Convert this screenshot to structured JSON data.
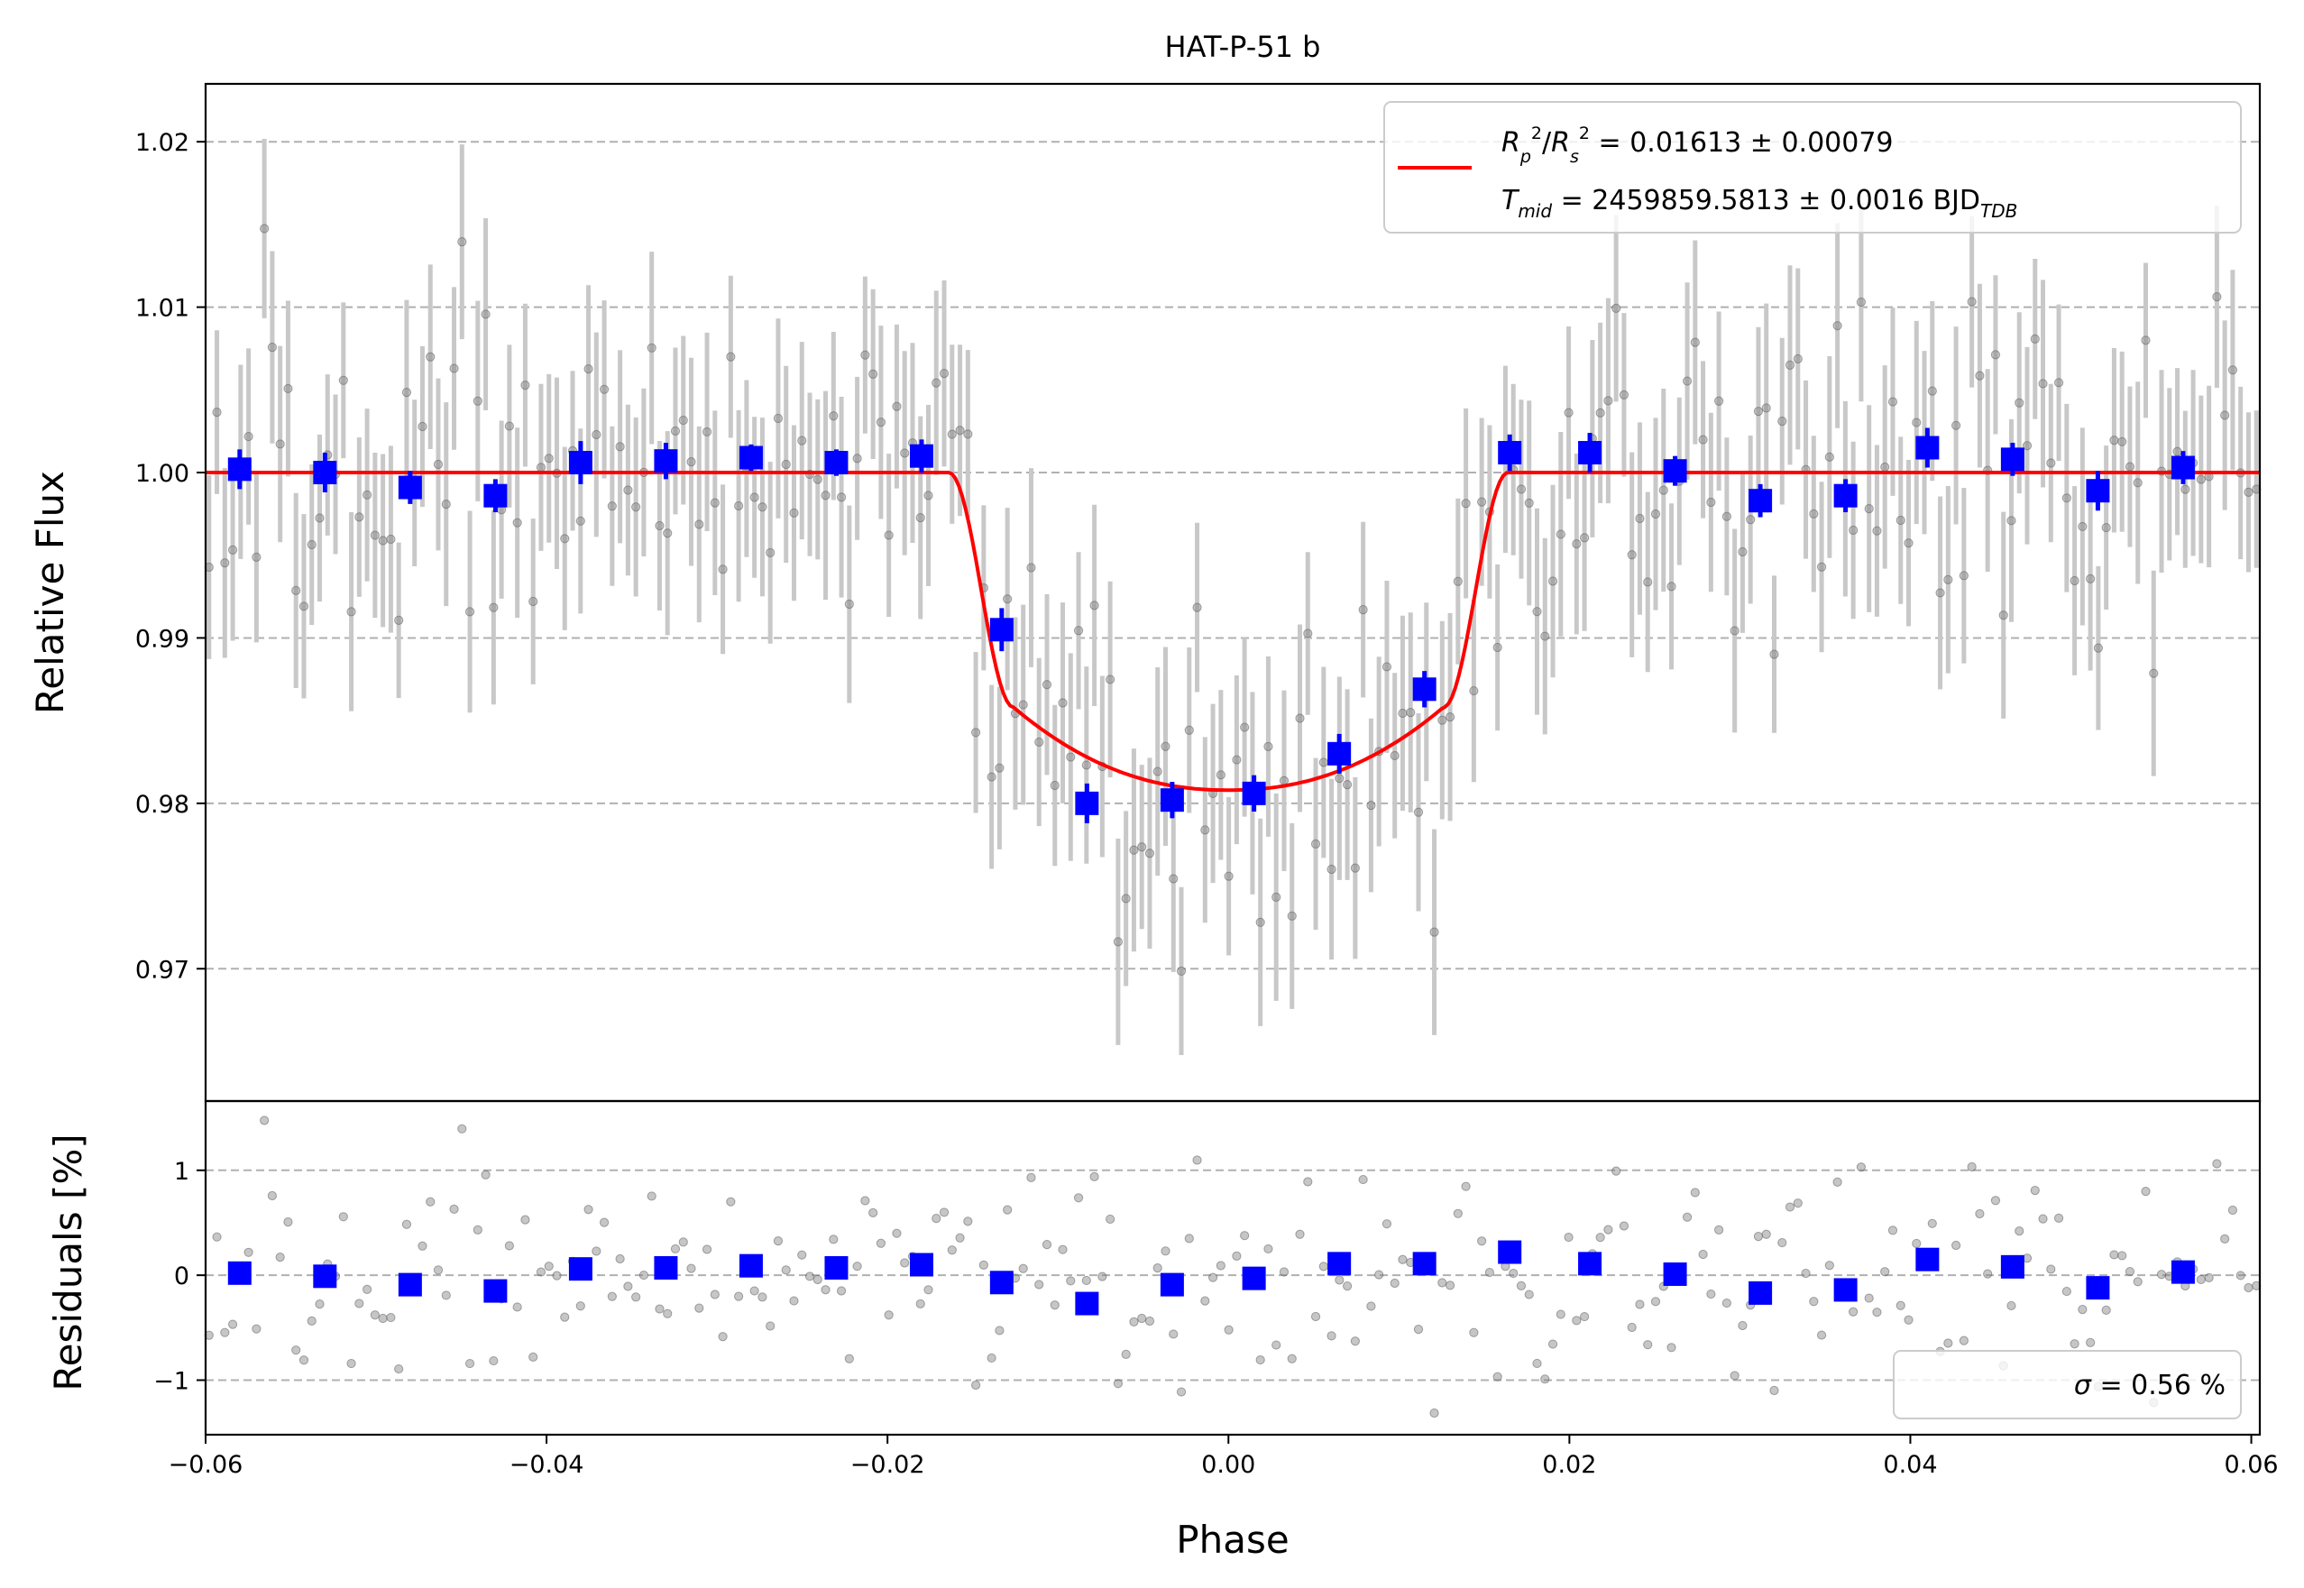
{
  "chart_data": {
    "type": "scatter",
    "title": "HAT-P-51 b",
    "xlabel": "Phase",
    "ylabel_top": "Relative Flux",
    "ylabel_bottom": "Residuals [%]",
    "xlim": [
      -0.06,
      0.0605
    ],
    "ylim_top": [
      0.962,
      1.0235
    ],
    "ylim_bottom": [
      -1.52,
      1.66
    ],
    "grid": "horizontal dashed",
    "x_ticks": [
      "−0.06",
      "−0.04",
      "−0.02",
      "0.00",
      "0.02",
      "0.04",
      "0.06"
    ],
    "x_tick_values": [
      -0.06,
      -0.04,
      -0.02,
      0.0,
      0.02,
      0.04,
      0.06
    ],
    "y_ticks_top": [
      "0.97",
      "0.98",
      "0.99",
      "1.00",
      "1.01",
      "1.02"
    ],
    "y_tick_values_top": [
      0.97,
      0.98,
      0.99,
      1.0,
      1.01,
      1.02
    ],
    "y_ticks_bottom": [
      "−1",
      "0",
      "1"
    ],
    "y_tick_values_bottom": [
      -1,
      0,
      1
    ],
    "legend": {
      "placement": "upper-right",
      "line1": "Rₚ²/Rₛ² = 0.01613 ± 0.00079",
      "line2": "Tₘᵢd = 2459859.5813 ± 0.0016 BJD_TDB",
      "line1_base": "R",
      "line1_rest": " = 0.01613 ± 0.00079",
      "line2_base": "T",
      "line2_sub": "mid",
      "line2_rest": " = 2459859.5813 ± 0.0016 BJD",
      "line2_tdb": "TDB",
      "line_color": "#ff0000"
    },
    "residual_legend": {
      "placement": "lower-right",
      "sigma_symbol": "σ",
      "text": " = 0.56 %"
    },
    "model": {
      "name": "transit model",
      "color": "#ff0000",
      "depth_rp2_rs2": 0.01613,
      "baseline": 1.0,
      "contact_phase_outer": 0.0164,
      "contact_phase_inner": 0.0126,
      "center_flux": 0.9808
    },
    "binned": {
      "color": "#0000ff",
      "x": [
        -0.058,
        -0.053,
        -0.048,
        -0.043,
        -0.038,
        -0.033,
        -0.028,
        -0.023,
        -0.018,
        -0.0133,
        -0.0083,
        -0.0033,
        0.0015,
        0.0065,
        0.0115,
        0.0165,
        0.0212,
        0.0262,
        0.0312,
        0.0362,
        0.041,
        0.046,
        0.051,
        0.056
      ],
      "flux": [
        1.0002,
        1.0,
        0.9991,
        0.9986,
        1.0006,
        1.0007,
        1.0009,
        1.0006,
        1.001,
        0.9905,
        0.98,
        0.9802,
        0.9806,
        0.983,
        0.9869,
        1.0012,
        1.0012,
        1.0001,
        0.9983,
        0.9986,
        1.0015,
        1.0008,
        0.9989,
        1.0003
      ],
      "flux_err": [
        0.0012,
        0.0012,
        0.001,
        0.001,
        0.0013,
        0.0011,
        0.0008,
        0.0008,
        0.001,
        0.0013,
        0.0012,
        0.0011,
        0.0011,
        0.0012,
        0.0011,
        0.0011,
        0.0012,
        0.0009,
        0.001,
        0.001,
        0.0012,
        0.001,
        0.0012,
        0.001
      ],
      "residual": [
        0.02,
        -0.01,
        -0.09,
        -0.15,
        0.06,
        0.07,
        0.09,
        0.07,
        0.1,
        -0.07,
        -0.27,
        -0.09,
        -0.03,
        0.11,
        0.11,
        0.22,
        0.11,
        0.01,
        -0.17,
        -0.14,
        0.15,
        0.08,
        -0.12,
        0.03
      ]
    },
    "raw": {
      "color": "#808080",
      "count": 260,
      "typical_flux_err": 0.0055,
      "sigma_percent": 0.56,
      "x_range": [
        -0.0598,
        0.0603
      ]
    }
  }
}
